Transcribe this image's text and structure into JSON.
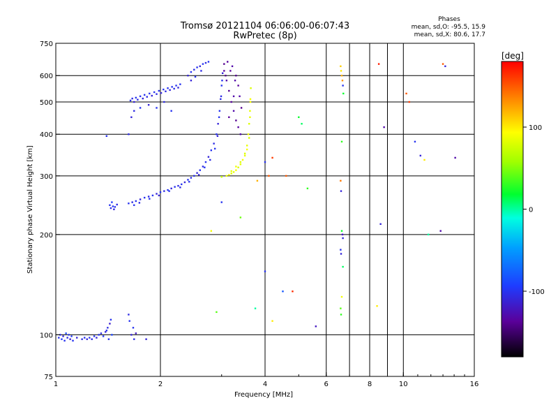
{
  "chart_data": {
    "type": "scatter",
    "title": "Tromsø 20121104 06:06:00-06:07:43",
    "subtitle": "RwPretec (8p)",
    "xlabel": "Frequency [MHz]",
    "ylabel": "Stationary phase Virtual Height [km]",
    "x_scale": "log",
    "y_scale": "log",
    "xlim": [
      1,
      16
    ],
    "ylim": [
      75,
      750
    ],
    "x_ticks": [
      1,
      2,
      4,
      6,
      8,
      10,
      16
    ],
    "y_ticks": [
      75,
      100,
      200,
      300,
      400,
      500,
      600,
      750
    ],
    "x_tick_labels": [
      "1",
      "2",
      "4",
      "6",
      "8",
      "10",
      "16"
    ],
    "y_tick_labels": [
      "75",
      "100",
      "200",
      "300",
      "400",
      "500",
      "600",
      "750"
    ],
    "grid": true,
    "stats": {
      "heading": "Phases",
      "line1": "mean, sd,O: -95.5, 15.9",
      "line2": "mean, sd,X:  80.6, 17.7"
    },
    "colorbar": {
      "title": "[deg]",
      "min": -180,
      "max": 180,
      "ticks": [
        100,
        0,
        -100
      ],
      "tick_labels": [
        "100",
        "0",
        "-100"
      ]
    },
    "series": [
      {
        "point_format": "[frequency MHz, virtual height km, phase deg]",
        "points": [
          [
            1.02,
            98,
            -100
          ],
          [
            1.03,
            100,
            -105
          ],
          [
            1.04,
            97,
            -95
          ],
          [
            1.05,
            99,
            -110
          ],
          [
            1.06,
            96,
            -100
          ],
          [
            1.07,
            101,
            -90
          ],
          [
            1.08,
            98,
            -105
          ],
          [
            1.09,
            100,
            -100
          ],
          [
            1.1,
            97,
            -115
          ],
          [
            1.11,
            99,
            -95
          ],
          [
            1.12,
            96,
            -100
          ],
          [
            1.15,
            98,
            -110
          ],
          [
            1.19,
            97,
            -105
          ],
          [
            1.21,
            98,
            -100
          ],
          [
            1.23,
            97,
            -110
          ],
          [
            1.25,
            98,
            -100
          ],
          [
            1.27,
            97,
            -105
          ],
          [
            1.29,
            99,
            -100
          ],
          [
            1.31,
            98,
            -110
          ],
          [
            1.33,
            100,
            -100
          ],
          [
            1.35,
            101,
            -105
          ],
          [
            1.37,
            99,
            -95
          ],
          [
            1.39,
            102,
            -110
          ],
          [
            1.4,
            103,
            -100
          ],
          [
            1.41,
            105,
            -105
          ],
          [
            1.42,
            97,
            -100
          ],
          [
            1.43,
            108,
            -115
          ],
          [
            1.44,
            111,
            -100
          ],
          [
            1.45,
            100,
            -90
          ],
          [
            1.62,
            115,
            -105
          ],
          [
            1.63,
            110,
            -100
          ],
          [
            1.65,
            100,
            -110
          ],
          [
            1.67,
            105,
            -100
          ],
          [
            1.68,
            97,
            -105
          ],
          [
            1.7,
            101,
            -120
          ],
          [
            1.82,
            97,
            -110
          ],
          [
            1.43,
            245,
            -100
          ],
          [
            1.44,
            240,
            -105
          ],
          [
            1.46,
            243,
            -100
          ],
          [
            1.47,
            238,
            -110
          ],
          [
            1.48,
            242,
            -100
          ],
          [
            1.5,
            246,
            -105
          ],
          [
            1.45,
            250,
            -95
          ],
          [
            1.62,
            248,
            -100
          ],
          [
            1.66,
            250,
            -105
          ],
          [
            1.7,
            252,
            -100
          ],
          [
            1.75,
            255,
            -110
          ],
          [
            1.8,
            258,
            -100
          ],
          [
            1.85,
            260,
            -105
          ],
          [
            1.9,
            262,
            -100
          ],
          [
            1.95,
            265,
            -110
          ],
          [
            2.0,
            268,
            -100
          ],
          [
            2.05,
            270,
            -105
          ],
          [
            2.1,
            272,
            -100
          ],
          [
            2.15,
            275,
            -110
          ],
          [
            2.2,
            278,
            -100
          ],
          [
            2.25,
            280,
            -105
          ],
          [
            2.3,
            283,
            -100
          ],
          [
            2.35,
            287,
            -110
          ],
          [
            2.4,
            292,
            -100
          ],
          [
            2.45,
            296,
            -105
          ],
          [
            2.5,
            300,
            -100
          ],
          [
            2.55,
            306,
            -110
          ],
          [
            2.6,
            312,
            -100
          ],
          [
            2.65,
            320,
            -105
          ],
          [
            2.7,
            330,
            -100
          ],
          [
            2.75,
            342,
            -110
          ],
          [
            2.8,
            358,
            -100
          ],
          [
            2.85,
            375,
            -105
          ],
          [
            2.9,
            400,
            -100
          ],
          [
            2.93,
            430,
            -110
          ],
          [
            2.96,
            470,
            -100
          ],
          [
            2.98,
            510,
            -105
          ],
          [
            3.0,
            560,
            -100
          ],
          [
            3.02,
            610,
            -110
          ],
          [
            1.68,
            245,
            -100
          ],
          [
            1.74,
            249,
            -105
          ],
          [
            1.86,
            256,
            -100
          ],
          [
            1.98,
            262,
            -110
          ],
          [
            2.12,
            270,
            -100
          ],
          [
            2.28,
            277,
            -105
          ],
          [
            2.42,
            288,
            -100
          ],
          [
            2.58,
            302,
            -110
          ],
          [
            2.68,
            318,
            -100
          ],
          [
            2.78,
            335,
            -105
          ],
          [
            2.87,
            362,
            -100
          ],
          [
            2.92,
            395,
            -110
          ],
          [
            2.95,
            450,
            -100
          ],
          [
            2.99,
            520,
            -105
          ],
          [
            3.01,
            580,
            -100
          ],
          [
            1.64,
            505,
            -100
          ],
          [
            1.66,
            512,
            -105
          ],
          [
            1.68,
            500,
            -110
          ],
          [
            1.7,
            515,
            -100
          ],
          [
            1.72,
            508,
            -105
          ],
          [
            1.75,
            520,
            -100
          ],
          [
            1.78,
            512,
            -110
          ],
          [
            1.8,
            525,
            -100
          ],
          [
            1.83,
            518,
            -105
          ],
          [
            1.86,
            530,
            -100
          ],
          [
            1.89,
            522,
            -110
          ],
          [
            1.92,
            535,
            -100
          ],
          [
            1.95,
            528,
            -105
          ],
          [
            1.98,
            540,
            -100
          ],
          [
            2.01,
            532,
            -110
          ],
          [
            2.04,
            545,
            -100
          ],
          [
            2.07,
            538,
            -105
          ],
          [
            2.1,
            550,
            -100
          ],
          [
            2.13,
            543,
            -110
          ],
          [
            2.16,
            555,
            -100
          ],
          [
            2.19,
            548,
            -105
          ],
          [
            2.22,
            560,
            -100
          ],
          [
            2.25,
            552,
            -110
          ],
          [
            2.28,
            565,
            -100
          ],
          [
            1.68,
            470,
            -105
          ],
          [
            1.75,
            480,
            -100
          ],
          [
            1.85,
            490,
            -110
          ],
          [
            1.95,
            480,
            -100
          ],
          [
            2.05,
            500,
            -105
          ],
          [
            2.15,
            470,
            -100
          ],
          [
            1.65,
            450,
            -110
          ],
          [
            2.4,
            600,
            -110
          ],
          [
            2.45,
            615,
            -100
          ],
          [
            2.5,
            625,
            -105
          ],
          [
            2.55,
            635,
            -100
          ],
          [
            2.6,
            640,
            -110
          ],
          [
            2.65,
            650,
            -100
          ],
          [
            2.7,
            655,
            -105
          ],
          [
            2.75,
            660,
            -100
          ],
          [
            2.45,
            580,
            -110
          ],
          [
            2.52,
            595,
            -100
          ],
          [
            2.62,
            620,
            -105
          ],
          [
            3.05,
            620,
            -135
          ],
          [
            3.1,
            580,
            -130
          ],
          [
            3.15,
            540,
            -140
          ],
          [
            3.2,
            500,
            -135
          ],
          [
            3.25,
            470,
            -130
          ],
          [
            3.3,
            440,
            -140
          ],
          [
            3.35,
            420,
            -135
          ],
          [
            3.4,
            400,
            -130
          ],
          [
            3.05,
            650,
            -140
          ],
          [
            3.12,
            660,
            -135
          ],
          [
            3.22,
            640,
            -130
          ],
          [
            3.3,
            600,
            -140
          ],
          [
            3.35,
            560,
            -135
          ],
          [
            3.38,
            520,
            -130
          ],
          [
            3.42,
            480,
            -140
          ],
          [
            3.18,
            620,
            -135
          ],
          [
            3.28,
            580,
            -130
          ],
          [
            3.08,
            600,
            -140
          ],
          [
            3.15,
            450,
            -135
          ],
          [
            3.25,
            520,
            -130
          ],
          [
            3.1,
            300,
            85
          ],
          [
            3.15,
            302,
            90
          ],
          [
            3.2,
            305,
            80
          ],
          [
            3.25,
            308,
            85
          ],
          [
            3.3,
            312,
            90
          ],
          [
            3.35,
            318,
            80
          ],
          [
            3.4,
            325,
            85
          ],
          [
            3.45,
            335,
            90
          ],
          [
            3.5,
            350,
            80
          ],
          [
            3.55,
            370,
            85
          ],
          [
            3.58,
            400,
            90
          ],
          [
            3.6,
            430,
            80
          ],
          [
            3.62,
            470,
            85
          ],
          [
            3.63,
            510,
            90
          ],
          [
            3.64,
            550,
            80
          ],
          [
            3.2,
            310,
            85
          ],
          [
            3.3,
            320,
            90
          ],
          [
            3.4,
            330,
            80
          ],
          [
            3.5,
            345,
            85
          ],
          [
            3.55,
            360,
            90
          ],
          [
            3.6,
            390,
            80
          ],
          [
            3.62,
            450,
            85
          ],
          [
            3.63,
            500,
            90
          ],
          [
            3.0,
            298,
            70
          ],
          [
            1.4,
            395,
            -100
          ],
          [
            1.62,
            400,
            -105
          ],
          [
            3.0,
            250,
            -100
          ],
          [
            3.4,
            225,
            45
          ],
          [
            3.8,
            290,
            120
          ],
          [
            4.0,
            330,
            -100
          ],
          [
            4.1,
            300,
            150
          ],
          [
            4.0,
            155,
            -100
          ],
          [
            4.2,
            340,
            160
          ],
          [
            3.75,
            120,
            0
          ],
          [
            4.2,
            110,
            100
          ],
          [
            4.5,
            135,
            -80
          ],
          [
            4.6,
            300,
            150
          ],
          [
            4.8,
            135,
            165
          ],
          [
            5.0,
            450,
            20
          ],
          [
            5.1,
            430,
            10
          ],
          [
            5.3,
            275,
            30
          ],
          [
            5.6,
            106,
            -120
          ],
          [
            2.9,
            117,
            40
          ],
          [
            2.8,
            205,
            90
          ],
          [
            6.6,
            640,
            110
          ],
          [
            6.62,
            620,
            100
          ],
          [
            6.65,
            600,
            120
          ],
          [
            6.68,
            580,
            130
          ],
          [
            6.7,
            560,
            -100
          ],
          [
            6.72,
            530,
            20
          ],
          [
            6.65,
            380,
            30
          ],
          [
            6.6,
            290,
            140
          ],
          [
            6.62,
            270,
            -110
          ],
          [
            6.68,
            200,
            -120
          ],
          [
            6.7,
            195,
            -110
          ],
          [
            6.65,
            205,
            20
          ],
          [
            6.6,
            180,
            -100
          ],
          [
            6.62,
            175,
            -110
          ],
          [
            6.7,
            160,
            10
          ],
          [
            6.65,
            130,
            90
          ],
          [
            6.6,
            120,
            40
          ],
          [
            6.62,
            115,
            30
          ],
          [
            8.5,
            650,
            170
          ],
          [
            8.6,
            215,
            -110
          ],
          [
            8.8,
            420,
            -130
          ],
          [
            8.4,
            122,
            100
          ],
          [
            10.2,
            530,
            150
          ],
          [
            10.4,
            500,
            160
          ],
          [
            10.8,
            380,
            -100
          ],
          [
            11.2,
            345,
            -110
          ],
          [
            11.5,
            335,
            100
          ],
          [
            12.8,
            205,
            -130
          ],
          [
            13.0,
            650,
            150
          ],
          [
            13.2,
            640,
            -110
          ],
          [
            14.1,
            340,
            -130
          ],
          [
            11.8,
            200,
            0
          ]
        ]
      }
    ]
  }
}
